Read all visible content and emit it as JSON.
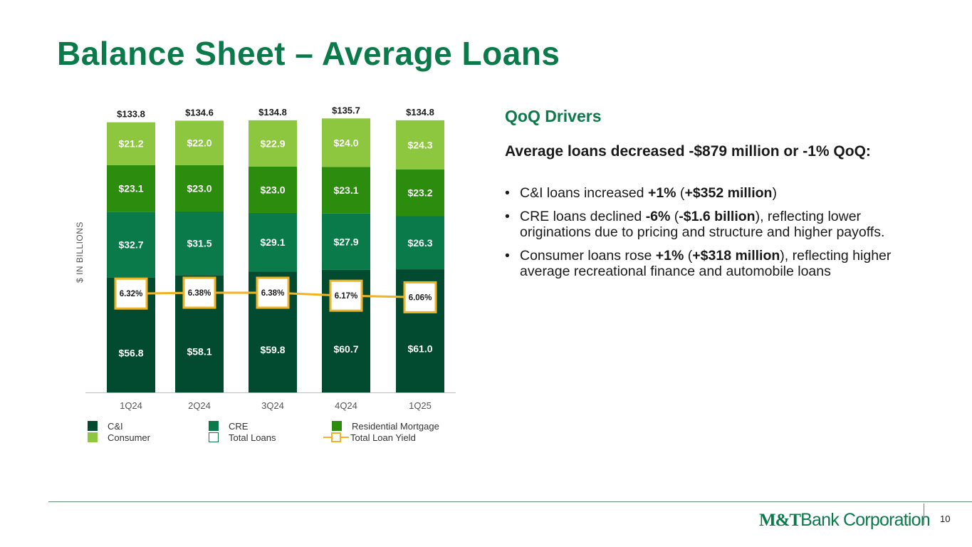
{
  "title": "Balance Sheet – Average Loans",
  "chart_data": {
    "type": "bar",
    "stacked": true,
    "ylabel": "$ IN BILLIONS",
    "categories": [
      "1Q24",
      "2Q24",
      "3Q24",
      "4Q24",
      "1Q25"
    ],
    "series": [
      {
        "name": "C&I",
        "color": "#024b30",
        "values": [
          56.8,
          58.1,
          59.8,
          60.7,
          61.0
        ],
        "labels": [
          "$56.8",
          "$58.1",
          "$59.8",
          "$60.7",
          "$61.0"
        ]
      },
      {
        "name": "CRE",
        "color": "#0b7a4b",
        "values": [
          32.7,
          31.5,
          29.1,
          27.9,
          26.3
        ],
        "labels": [
          "$32.7",
          "$31.5",
          "$29.1",
          "$27.9",
          "$26.3"
        ]
      },
      {
        "name": "Residential Mortgage",
        "color": "#2c8c0d",
        "values": [
          23.1,
          23.0,
          23.0,
          23.1,
          23.2
        ],
        "labels": [
          "$23.1",
          "$23.0",
          "$23.0",
          "$23.1",
          "$23.2"
        ]
      },
      {
        "name": "Consumer",
        "color": "#8dc63f",
        "values": [
          21.2,
          22.0,
          22.9,
          24.0,
          24.3
        ],
        "labels": [
          "$21.2",
          "$22.0",
          "$22.9",
          "$24.0",
          "$24.3"
        ]
      }
    ],
    "totals": {
      "name": "Total Loans",
      "values": [
        133.8,
        134.6,
        134.8,
        135.7,
        134.8
      ],
      "labels": [
        "$133.8",
        "$134.6",
        "$134.8",
        "$135.7",
        "$134.8"
      ]
    },
    "line": {
      "name": "Total Loan Yield",
      "color": "#f0b323",
      "values": [
        6.32,
        6.38,
        6.38,
        6.17,
        6.06
      ],
      "labels": [
        "6.32%",
        "6.38%",
        "6.38%",
        "6.17%",
        "6.06%"
      ]
    },
    "legend": "bottom"
  },
  "drivers": {
    "title": "QoQ Drivers",
    "heading": "Average loans decreased -$879 million or -1% QoQ:",
    "bullets": [
      [
        {
          "t": "C&I loans increased "
        },
        {
          "t": "+1%",
          "b": true
        },
        {
          "t": " ("
        },
        {
          "t": "+$352 million",
          "b": true
        },
        {
          "t": ")"
        }
      ],
      [
        {
          "t": "CRE loans declined "
        },
        {
          "t": "-6%",
          "b": true
        },
        {
          "t": " ("
        },
        {
          "t": "-$1.6 billion",
          "b": true
        },
        {
          "t": "), reflecting lower originations due to pricing and structure and higher payoffs."
        }
      ],
      [
        {
          "t": "Consumer loans rose "
        },
        {
          "t": "+1%",
          "b": true
        },
        {
          "t": " ("
        },
        {
          "t": "+$318 million",
          "b": true
        },
        {
          "t": "), reflecting higher average recreational finance and automobile loans"
        }
      ]
    ]
  },
  "footer": {
    "logo_bold": "M&T",
    "logo_rest": "Bank Corporation",
    "page_number": "10"
  }
}
